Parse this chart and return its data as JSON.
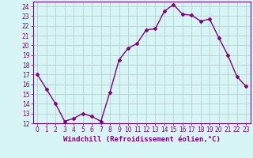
{
  "x": [
    0,
    1,
    2,
    3,
    4,
    5,
    6,
    7,
    8,
    9,
    10,
    11,
    12,
    13,
    14,
    15,
    16,
    17,
    18,
    19,
    20,
    21,
    22,
    23
  ],
  "y": [
    17,
    15.5,
    14,
    12.2,
    12.5,
    13,
    12.7,
    12.2,
    15.2,
    18.5,
    19.7,
    20.2,
    21.6,
    21.7,
    23.5,
    24.2,
    23.2,
    23.1,
    22.5,
    22.7,
    20.8,
    19,
    16.8,
    15.8
  ],
  "line_color": "#800080",
  "marker": "D",
  "marker_size": 2,
  "bg_color": "#d8f5f5",
  "grid_color": "#b0c8c8",
  "xlabel": "Windchill (Refroidissement éolien,°C)",
  "xlim": [
    -0.5,
    23.5
  ],
  "ylim": [
    12,
    24.5
  ],
  "yticks": [
    12,
    13,
    14,
    15,
    16,
    17,
    18,
    19,
    20,
    21,
    22,
    23,
    24
  ],
  "xticks": [
    0,
    1,
    2,
    3,
    4,
    5,
    6,
    7,
    8,
    9,
    10,
    11,
    12,
    13,
    14,
    15,
    16,
    17,
    18,
    19,
    20,
    21,
    22,
    23
  ],
  "xlabel_fontsize": 6.5,
  "tick_fontsize": 5.5,
  "line_width": 1
}
